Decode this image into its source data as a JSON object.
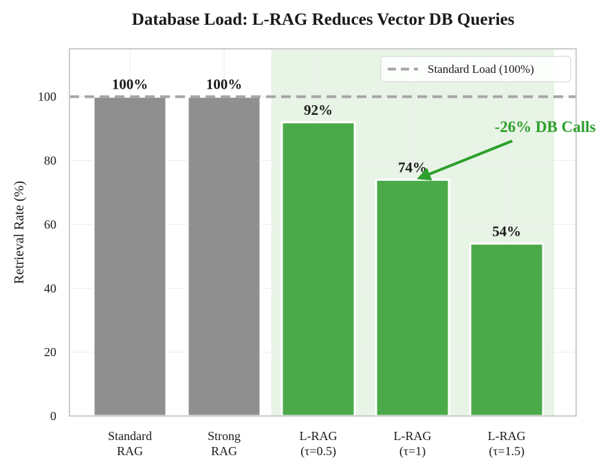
{
  "chart_data": {
    "type": "bar",
    "title": "Database Load: L-RAG Reduces Vector DB Queries",
    "xlabel": "",
    "ylabel": "Retrieval Rate (%)",
    "ylim": [
      0,
      115
    ],
    "yticks": [
      0,
      20,
      40,
      60,
      80,
      100
    ],
    "categories": [
      [
        "Standard",
        "RAG"
      ],
      [
        "Strong",
        "RAG"
      ],
      [
        "L-RAG",
        "(τ=0.5)"
      ],
      [
        "L-RAG",
        "(τ=1)"
      ],
      [
        "L-RAG",
        "(τ=1.5)"
      ]
    ],
    "values": [
      100,
      100,
      92,
      74,
      54
    ],
    "value_labels": [
      "100%",
      "100%",
      "92%",
      "74%",
      "54%"
    ],
    "bar_colors": [
      "#8f8f8f",
      "#8f8f8f",
      "#4aaa4a",
      "#4aaa4a",
      "#4aaa4a"
    ],
    "highlight_region": {
      "from_category": 2,
      "to_category": 4,
      "color": "#e8f4e6"
    },
    "reference_line": {
      "y": 100,
      "label": "Standard Load (100%)",
      "color": "#a6a6a6",
      "style": "dashed"
    },
    "annotation": {
      "text": "-26% DB Calls",
      "points_to_category": 3,
      "points_to_value": 74,
      "color": "#2ca02c"
    },
    "grid": true,
    "legend_position": "top-right"
  }
}
